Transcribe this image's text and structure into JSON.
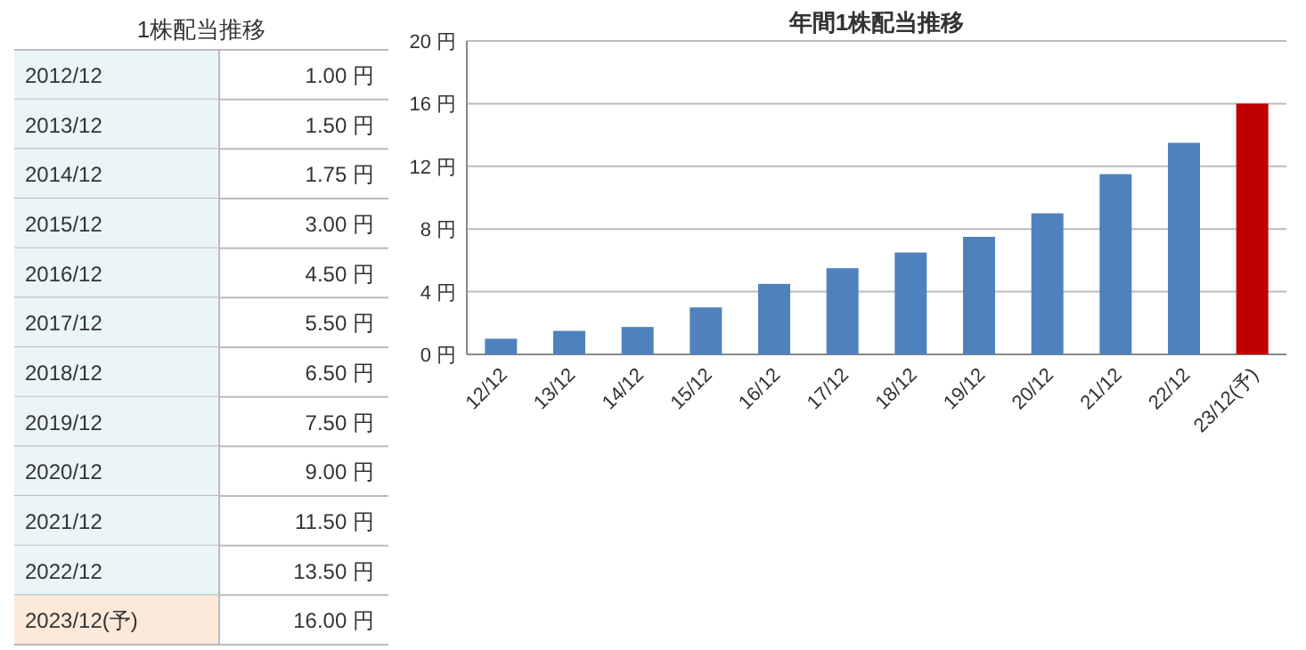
{
  "chart_data": [
    {
      "type": "other",
      "title": "1株配当推移",
      "annotations": [
        "2012/12",
        "1.00 円",
        "2013/12",
        "1.50 円",
        "2014/12",
        "1.75 円",
        "2015/12",
        "3.00 円",
        "2016/12",
        "4.50 円",
        "2017/12",
        "5.50 円",
        "2018/12",
        "6.50 円",
        "2019/12",
        "7.50 円",
        "2020/12",
        "9.00 円",
        "2021/12",
        "11.50 円",
        "2022/12",
        "13.50 円",
        "2023/12(予)",
        "16.00 円"
      ]
    },
    {
      "type": "bar",
      "title": "年間1株配当推移",
      "categories": [
        "12/12",
        "13/12",
        "14/12",
        "15/12",
        "16/12",
        "17/12",
        "18/12",
        "19/12",
        "20/12",
        "21/12",
        "22/12",
        "23/12(予)"
      ],
      "values": [
        1,
        1.5,
        1.75,
        3,
        4.5,
        5.5,
        6.5,
        7.5,
        9,
        11.5,
        13.5,
        16
      ],
      "colors": [
        "#4f81bd",
        "#4f81bd",
        "#4f81bd",
        "#4f81bd",
        "#4f81bd",
        "#4f81bd",
        "#4f81bd",
        "#4f81bd",
        "#4f81bd",
        "#4f81bd",
        "#4f81bd",
        "#c00000"
      ],
      "ylim": [
        0,
        20
      ],
      "yticks": [
        {
          "value": 0,
          "label": "0 円"
        },
        {
          "value": 4,
          "label": "4 円"
        },
        {
          "value": 8,
          "label": "8 円"
        },
        {
          "value": 12,
          "label": "12 円"
        },
        {
          "value": 16,
          "label": "16 円"
        },
        {
          "value": 20,
          "label": "20 円"
        }
      ],
      "grid": "y"
    }
  ]
}
